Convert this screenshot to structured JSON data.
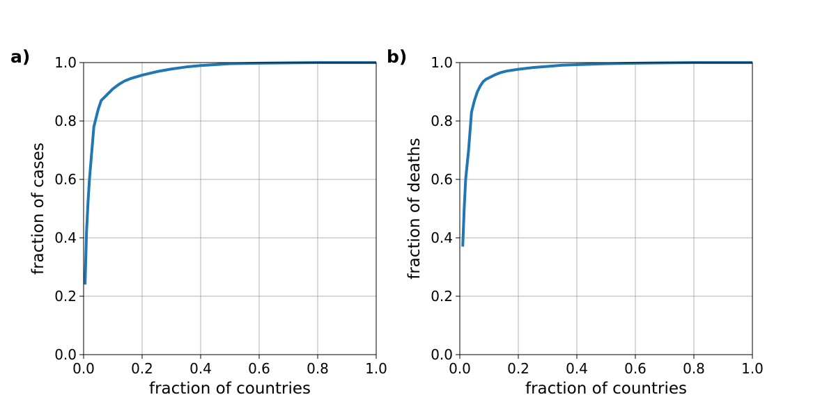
{
  "chart_data": [
    {
      "type": "line",
      "panel_label": "a)",
      "title": "",
      "xlabel": "fraction of countries",
      "ylabel": "fraction of cases",
      "xlim": [
        0.0,
        1.0
      ],
      "ylim": [
        0.0,
        1.0
      ],
      "xticks": [
        "0.0",
        "0.2",
        "0.4",
        "0.6",
        "0.8",
        "1.0"
      ],
      "yticks": [
        "0.0",
        "0.2",
        "0.4",
        "0.6",
        "0.8",
        "1.0"
      ],
      "grid": true,
      "line_color": "#1f77b4",
      "series": [
        {
          "x": [
            0.005,
            0.01,
            0.015,
            0.02,
            0.025,
            0.03,
            0.035,
            0.04,
            0.05,
            0.06,
            0.07,
            0.08,
            0.1,
            0.12,
            0.14,
            0.16,
            0.2,
            0.25,
            0.3,
            0.35,
            0.4,
            0.5,
            0.6,
            0.7,
            0.8,
            0.9,
            1.0
          ],
          "y": [
            0.24,
            0.42,
            0.52,
            0.6,
            0.66,
            0.72,
            0.78,
            0.8,
            0.84,
            0.87,
            0.88,
            0.89,
            0.91,
            0.925,
            0.937,
            0.945,
            0.957,
            0.969,
            0.978,
            0.985,
            0.99,
            0.996,
            0.998,
            0.999,
            1.0,
            1.0,
            1.0
          ]
        }
      ]
    },
    {
      "type": "line",
      "panel_label": "b)",
      "title": "",
      "xlabel": "fraction of countries",
      "ylabel": "fraction of deaths",
      "xlim": [
        0.0,
        1.0
      ],
      "ylim": [
        0.0,
        1.0
      ],
      "xticks": [
        "0.0",
        "0.2",
        "0.4",
        "0.6",
        "0.8",
        "1.0"
      ],
      "yticks": [
        "0.0",
        "0.2",
        "0.4",
        "0.6",
        "0.8",
        "1.0"
      ],
      "grid": true,
      "line_color": "#1f77b4",
      "series": [
        {
          "x": [
            0.01,
            0.015,
            0.02,
            0.025,
            0.03,
            0.04,
            0.05,
            0.06,
            0.07,
            0.08,
            0.09,
            0.1,
            0.12,
            0.14,
            0.16,
            0.2,
            0.25,
            0.3,
            0.35,
            0.4,
            0.5,
            0.6,
            0.7,
            0.8,
            0.9,
            1.0
          ],
          "y": [
            0.37,
            0.5,
            0.6,
            0.65,
            0.7,
            0.83,
            0.87,
            0.9,
            0.92,
            0.935,
            0.943,
            0.948,
            0.958,
            0.966,
            0.971,
            0.977,
            0.983,
            0.987,
            0.991,
            0.993,
            0.996,
            0.998,
            0.999,
            1.0,
            1.0,
            1.0
          ]
        }
      ]
    }
  ]
}
